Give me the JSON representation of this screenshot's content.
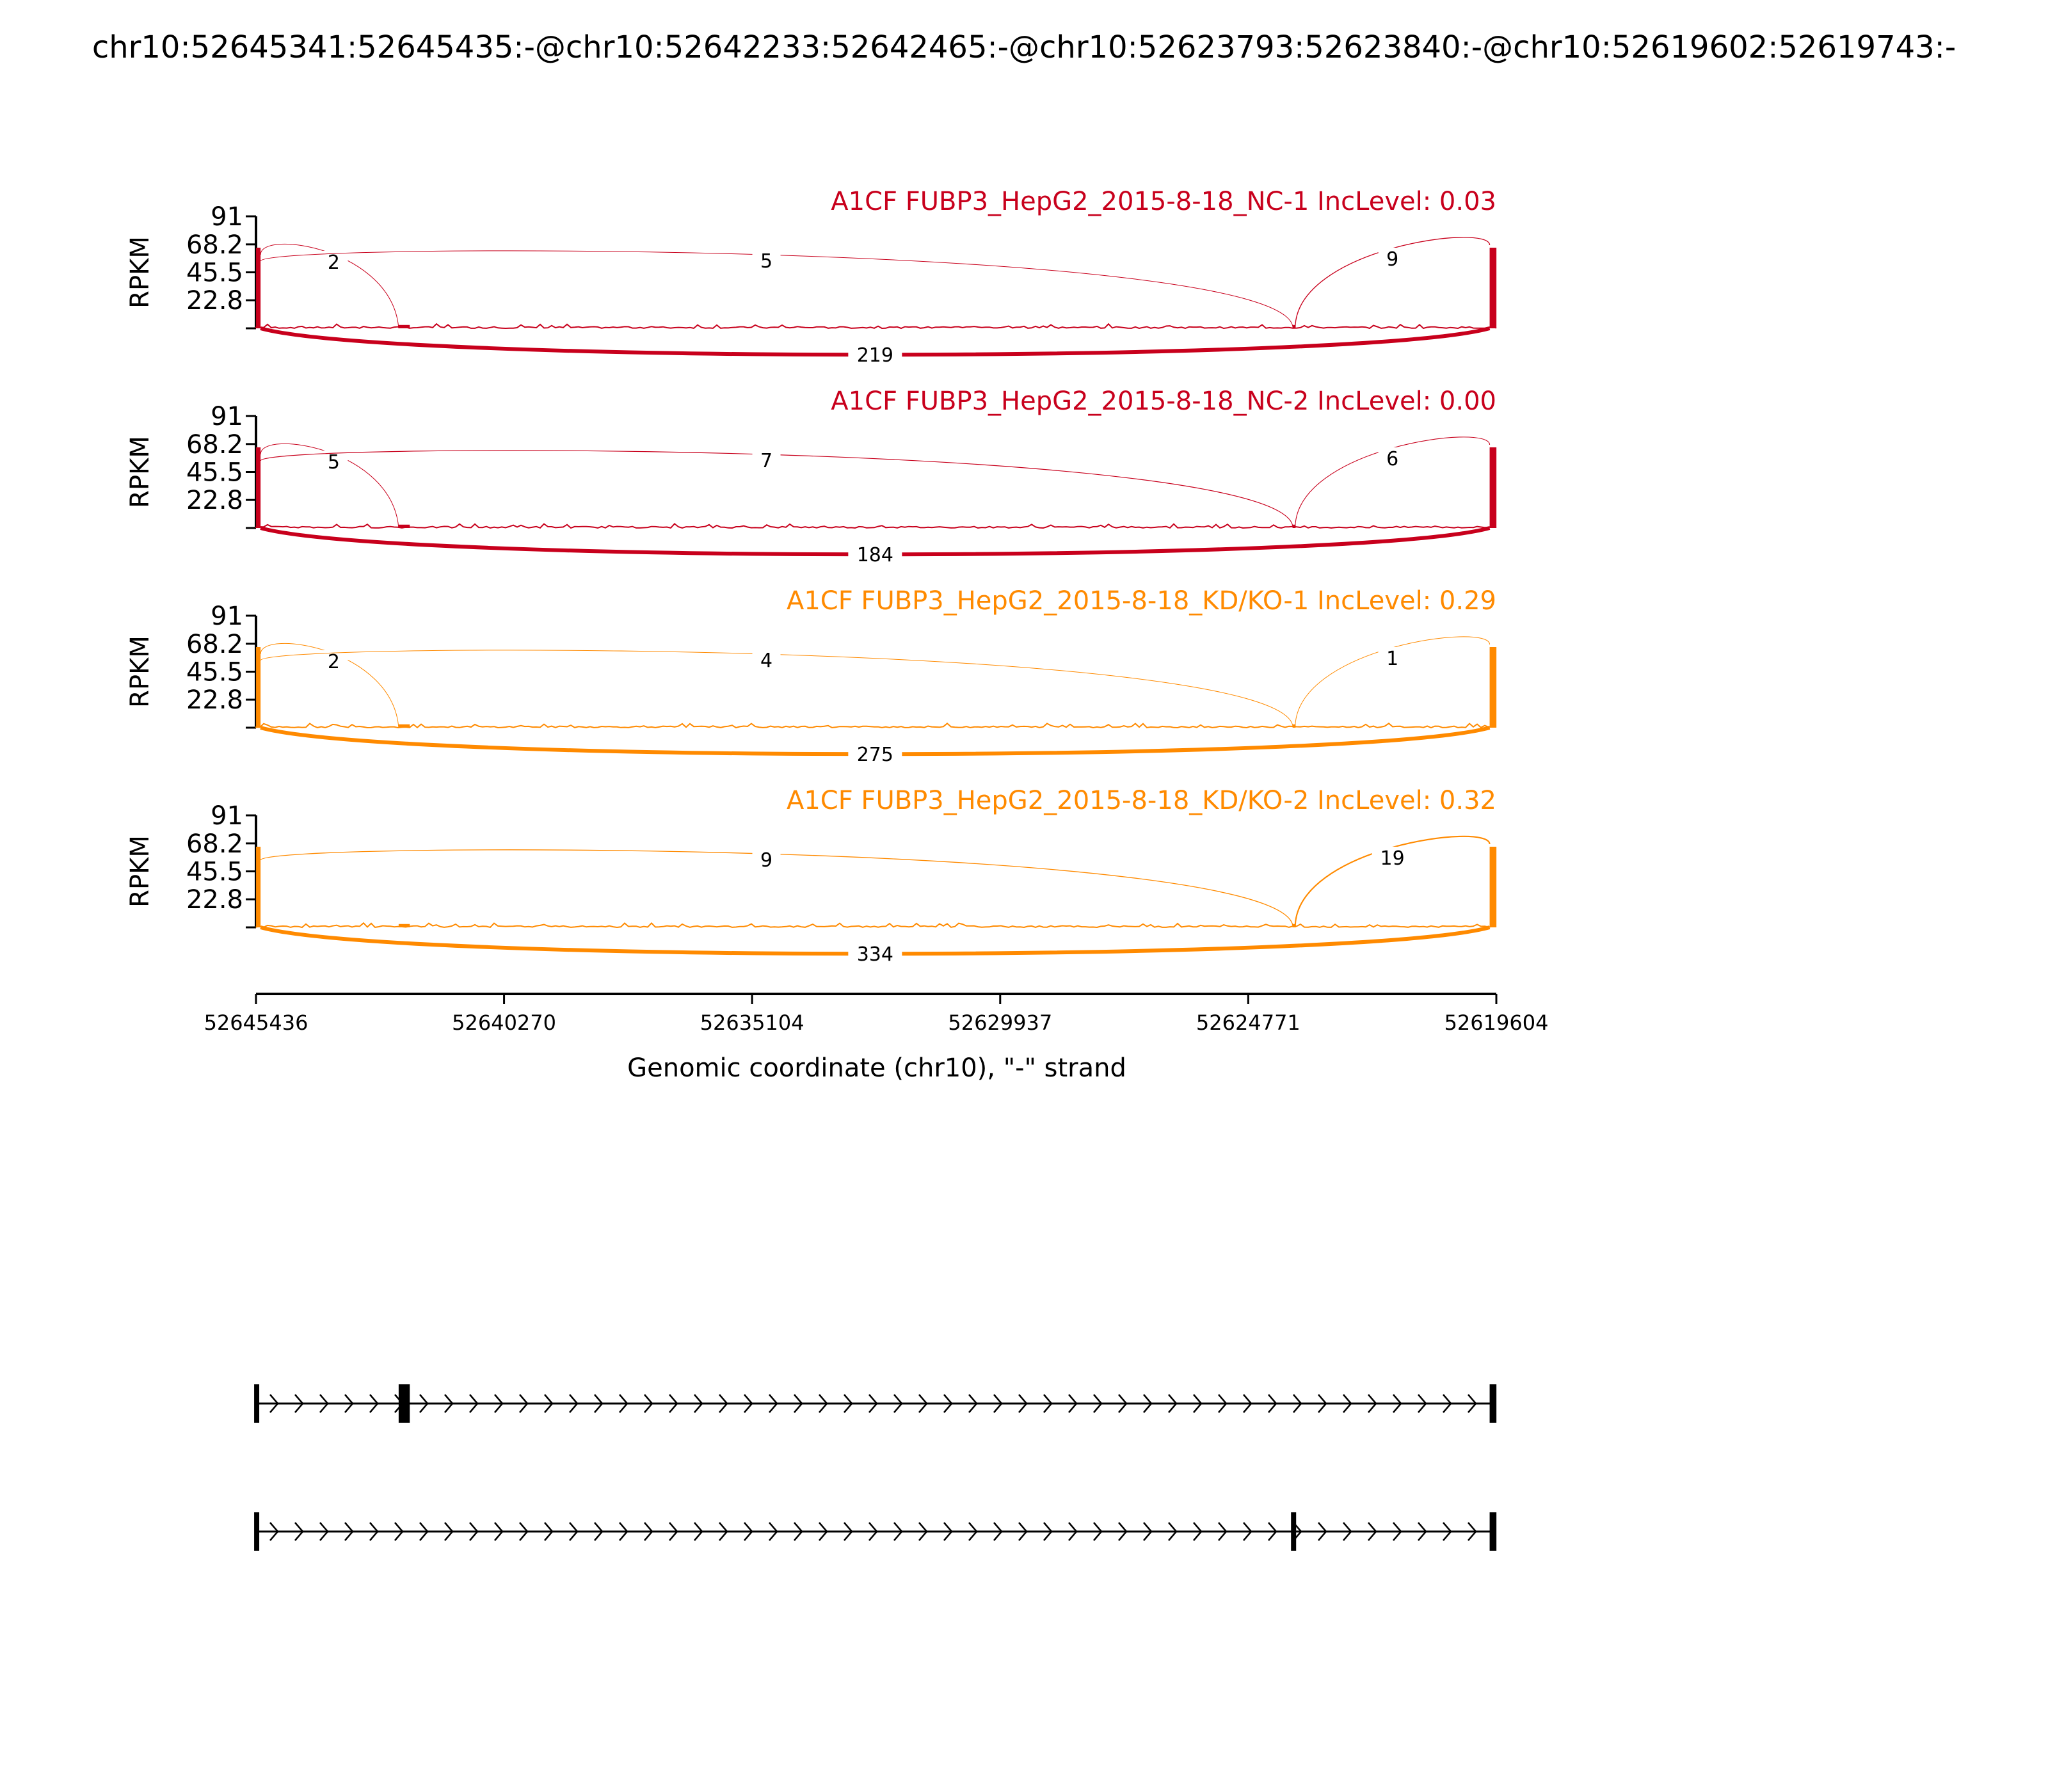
{
  "chart_data": {
    "type": "sashimi",
    "title": "chr10:52645341:52645435:-@chr10:52642233:52642465:-@chr10:52623793:52623840:-@chr10:52619602:52619743:-",
    "xlabel": "Genomic coordinate (chr10), \"-\" strand",
    "ylabel": "RPKM",
    "x_range": [
      52645436,
      52619604
    ],
    "x_ticks": [
      "52645436",
      "52640270",
      "52635104",
      "52629937",
      "52624771",
      "52619604"
    ],
    "y_range": [
      0,
      91
    ],
    "y_ticks": [
      "91",
      "68.2",
      "45.5",
      "22.8"
    ],
    "colors": {
      "nc": "#c8001c",
      "kd": "#ff8a00"
    },
    "samples": [
      {
        "label": "A1CF FUBP3_HepG2_2015-8-18_NC-1 IncLevel: 0.03",
        "color": "#c8001c",
        "junctions": [
          {
            "from": 52645341,
            "to": 52642465,
            "count": "2",
            "side": "top"
          },
          {
            "from": 52645341,
            "to": 52623840,
            "count": "5",
            "side": "top"
          },
          {
            "from": 52623793,
            "to": 52619743,
            "count": "9",
            "side": "top"
          },
          {
            "from": 52645341,
            "to": 52619743,
            "count": "219",
            "side": "bottom"
          }
        ]
      },
      {
        "label": "A1CF FUBP3_HepG2_2015-8-18_NC-2 IncLevel: 0.00",
        "color": "#c8001c",
        "junctions": [
          {
            "from": 52645341,
            "to": 52642465,
            "count": "5",
            "side": "top"
          },
          {
            "from": 52645341,
            "to": 52623840,
            "count": "7",
            "side": "top"
          },
          {
            "from": 52623793,
            "to": 52619743,
            "count": "6",
            "side": "top"
          },
          {
            "from": 52645341,
            "to": 52619743,
            "count": "184",
            "side": "bottom"
          }
        ]
      },
      {
        "label": "A1CF FUBP3_HepG2_2015-8-18_KD/KO-1 IncLevel: 0.29",
        "color": "#ff8a00",
        "junctions": [
          {
            "from": 52645341,
            "to": 52642465,
            "count": "2",
            "side": "top"
          },
          {
            "from": 52645341,
            "to": 52623840,
            "count": "4",
            "side": "top"
          },
          {
            "from": 52623793,
            "to": 52619743,
            "count": "1",
            "side": "top"
          },
          {
            "from": 52645341,
            "to": 52619743,
            "count": "275",
            "side": "bottom"
          }
        ]
      },
      {
        "label": "A1CF FUBP3_HepG2_2015-8-18_KD/KO-2 IncLevel: 0.32",
        "color": "#ff8a00",
        "junctions": [
          {
            "from": 52645341,
            "to": 52623840,
            "count": "9",
            "side": "top"
          },
          {
            "from": 52623793,
            "to": 52619743,
            "count": "19",
            "side": "top"
          },
          {
            "from": 52645341,
            "to": 52619743,
            "count": "334",
            "side": "bottom"
          }
        ]
      }
    ],
    "transcripts": [
      {
        "exons": [
          [
            52645435,
            52645341
          ],
          [
            52642465,
            52642233
          ],
          [
            52619743,
            52619602
          ]
        ]
      },
      {
        "exons": [
          [
            52645435,
            52645341
          ],
          [
            52623840,
            52623793
          ],
          [
            52619743,
            52619602
          ]
        ]
      }
    ]
  }
}
